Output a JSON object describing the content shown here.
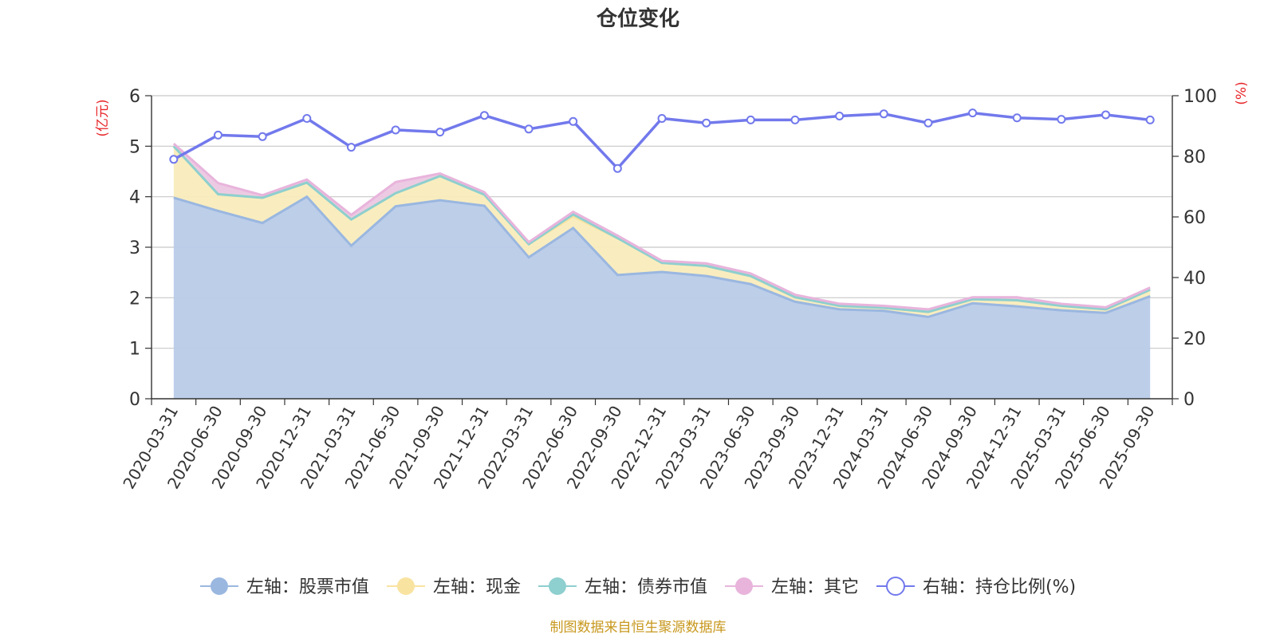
{
  "chart_data": {
    "type": "area",
    "title": "仓位变化",
    "left_unit": "(亿元)",
    "right_unit": "(%)",
    "left_ylim": [
      0,
      6
    ],
    "left_ticks": [
      "0",
      "1",
      "2",
      "3",
      "4",
      "5",
      "6"
    ],
    "right_ylim": [
      0,
      100
    ],
    "right_ticks": [
      "0",
      "20",
      "40",
      "60",
      "80",
      "100"
    ],
    "categories": [
      "2020-03-31",
      "2020-06-30",
      "2020-09-30",
      "2020-12-31",
      "2021-03-31",
      "2021-06-30",
      "2021-09-30",
      "2021-12-31",
      "2022-03-31",
      "2022-06-30",
      "2022-09-30",
      "2022-12-31",
      "2023-03-31",
      "2023-06-30",
      "2023-09-30",
      "2023-12-31",
      "2024-03-31",
      "2024-06-30",
      "2024-09-30",
      "2024-12-31",
      "2025-03-31",
      "2025-06-30",
      "2025-09-30"
    ],
    "series": [
      {
        "name": "左轴：股票市值",
        "axis": "left",
        "kind": "stacked-area",
        "color": "#9ab7e0",
        "fill": "#b9cbe8",
        "values": [
          3.98,
          3.72,
          3.48,
          4.0,
          3.03,
          3.81,
          3.93,
          3.82,
          2.8,
          3.38,
          2.45,
          2.51,
          2.43,
          2.27,
          1.92,
          1.77,
          1.74,
          1.62,
          1.89,
          1.83,
          1.75,
          1.7,
          2.03
        ]
      },
      {
        "name": "左轴：现金",
        "axis": "left",
        "kind": "stacked-area",
        "color": "#f9e3a0",
        "fill": "#f9ecbc",
        "values": [
          1.02,
          0.33,
          0.5,
          0.28,
          0.52,
          0.26,
          0.48,
          0.22,
          0.26,
          0.23,
          0.73,
          0.18,
          0.2,
          0.16,
          0.09,
          0.07,
          0.06,
          0.1,
          0.08,
          0.12,
          0.09,
          0.07,
          0.13
        ]
      },
      {
        "name": "左轴：债券市值",
        "axis": "left",
        "kind": "stacked-area",
        "color": "#8ecfcf",
        "fill": "#b3e0dd",
        "values": [
          0,
          0,
          0,
          0,
          0,
          0,
          0,
          0,
          0,
          0.04,
          0,
          0,
          0,
          0,
          0,
          0,
          0,
          0,
          0,
          0,
          0,
          0,
          0
        ]
      },
      {
        "name": "左轴：其它",
        "axis": "left",
        "kind": "stacked-area",
        "color": "#e8b4dc",
        "fill": "#ecc7e2",
        "values": [
          0.05,
          0.22,
          0.05,
          0.06,
          0.09,
          0.22,
          0.05,
          0.05,
          0.04,
          0.05,
          0.05,
          0.04,
          0.05,
          0.05,
          0.05,
          0.04,
          0.04,
          0.05,
          0.04,
          0.06,
          0.04,
          0.04,
          0.04
        ]
      },
      {
        "name": "右轴：持仓比例(%)",
        "axis": "right",
        "kind": "line",
        "color": "#7279ec",
        "values": [
          79,
          87,
          86.5,
          92.5,
          83,
          88.7,
          88,
          93.5,
          89,
          91.5,
          76,
          92.5,
          91,
          92,
          92,
          93.3,
          94,
          91,
          94.3,
          92.7,
          92.2,
          93.7,
          92
        ]
      }
    ],
    "legend": [
      "左轴：股票市值",
      "左轴：现金",
      "左轴：债券市值",
      "左轴：其它",
      "右轴：持仓比例(%)"
    ],
    "legend_position": "bottom",
    "grid": true
  },
  "source": "制图数据来自恒生聚源数据库"
}
